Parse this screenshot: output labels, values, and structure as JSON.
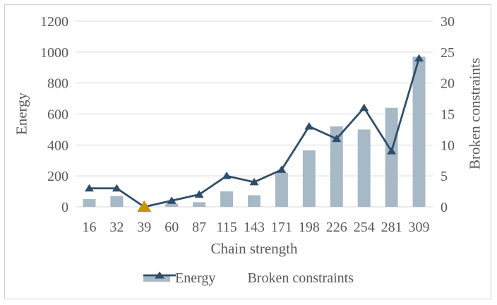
{
  "chart_data": {
    "type": "combo",
    "categories": [
      "16",
      "32",
      "39",
      "60",
      "87",
      "115",
      "143",
      "171",
      "198",
      "226",
      "254",
      "281",
      "309"
    ],
    "series": [
      {
        "name": "Energy",
        "type": "bar",
        "axis": "left",
        "color": "#a7b9c6",
        "values": [
          50,
          70,
          0,
          20,
          30,
          100,
          75,
          220,
          365,
          520,
          500,
          640,
          970
        ]
      },
      {
        "name": "Broken constraints",
        "type": "line",
        "axis": "right",
        "color": "#2e4d6b",
        "marker": "triangle",
        "values": [
          3,
          3,
          0,
          1,
          2,
          5,
          4,
          6,
          13,
          11,
          16,
          9,
          24
        ],
        "highlight": {
          "index": 2,
          "color": "#c79500",
          "note": "gold marker at chain strength 39"
        }
      }
    ],
    "xlabel": "Chain strength",
    "ylabel_left": "Energy",
    "ylabel_right": "Broken constraints",
    "ylim_left": [
      0,
      1200
    ],
    "ylim_right": [
      0,
      30
    ],
    "yticks_left": [
      0,
      200,
      400,
      600,
      800,
      1000,
      1200
    ],
    "yticks_right": [
      0,
      5,
      10,
      15,
      20,
      25,
      30
    ],
    "grid": true,
    "legend_position": "bottom"
  },
  "colors": {
    "bar": "#a7b9c6",
    "line": "#2e4d6b",
    "highlight_marker": "#c79500",
    "gridline": "#d9d9d9",
    "text": "#595959",
    "frame_border": "#d0cece"
  }
}
